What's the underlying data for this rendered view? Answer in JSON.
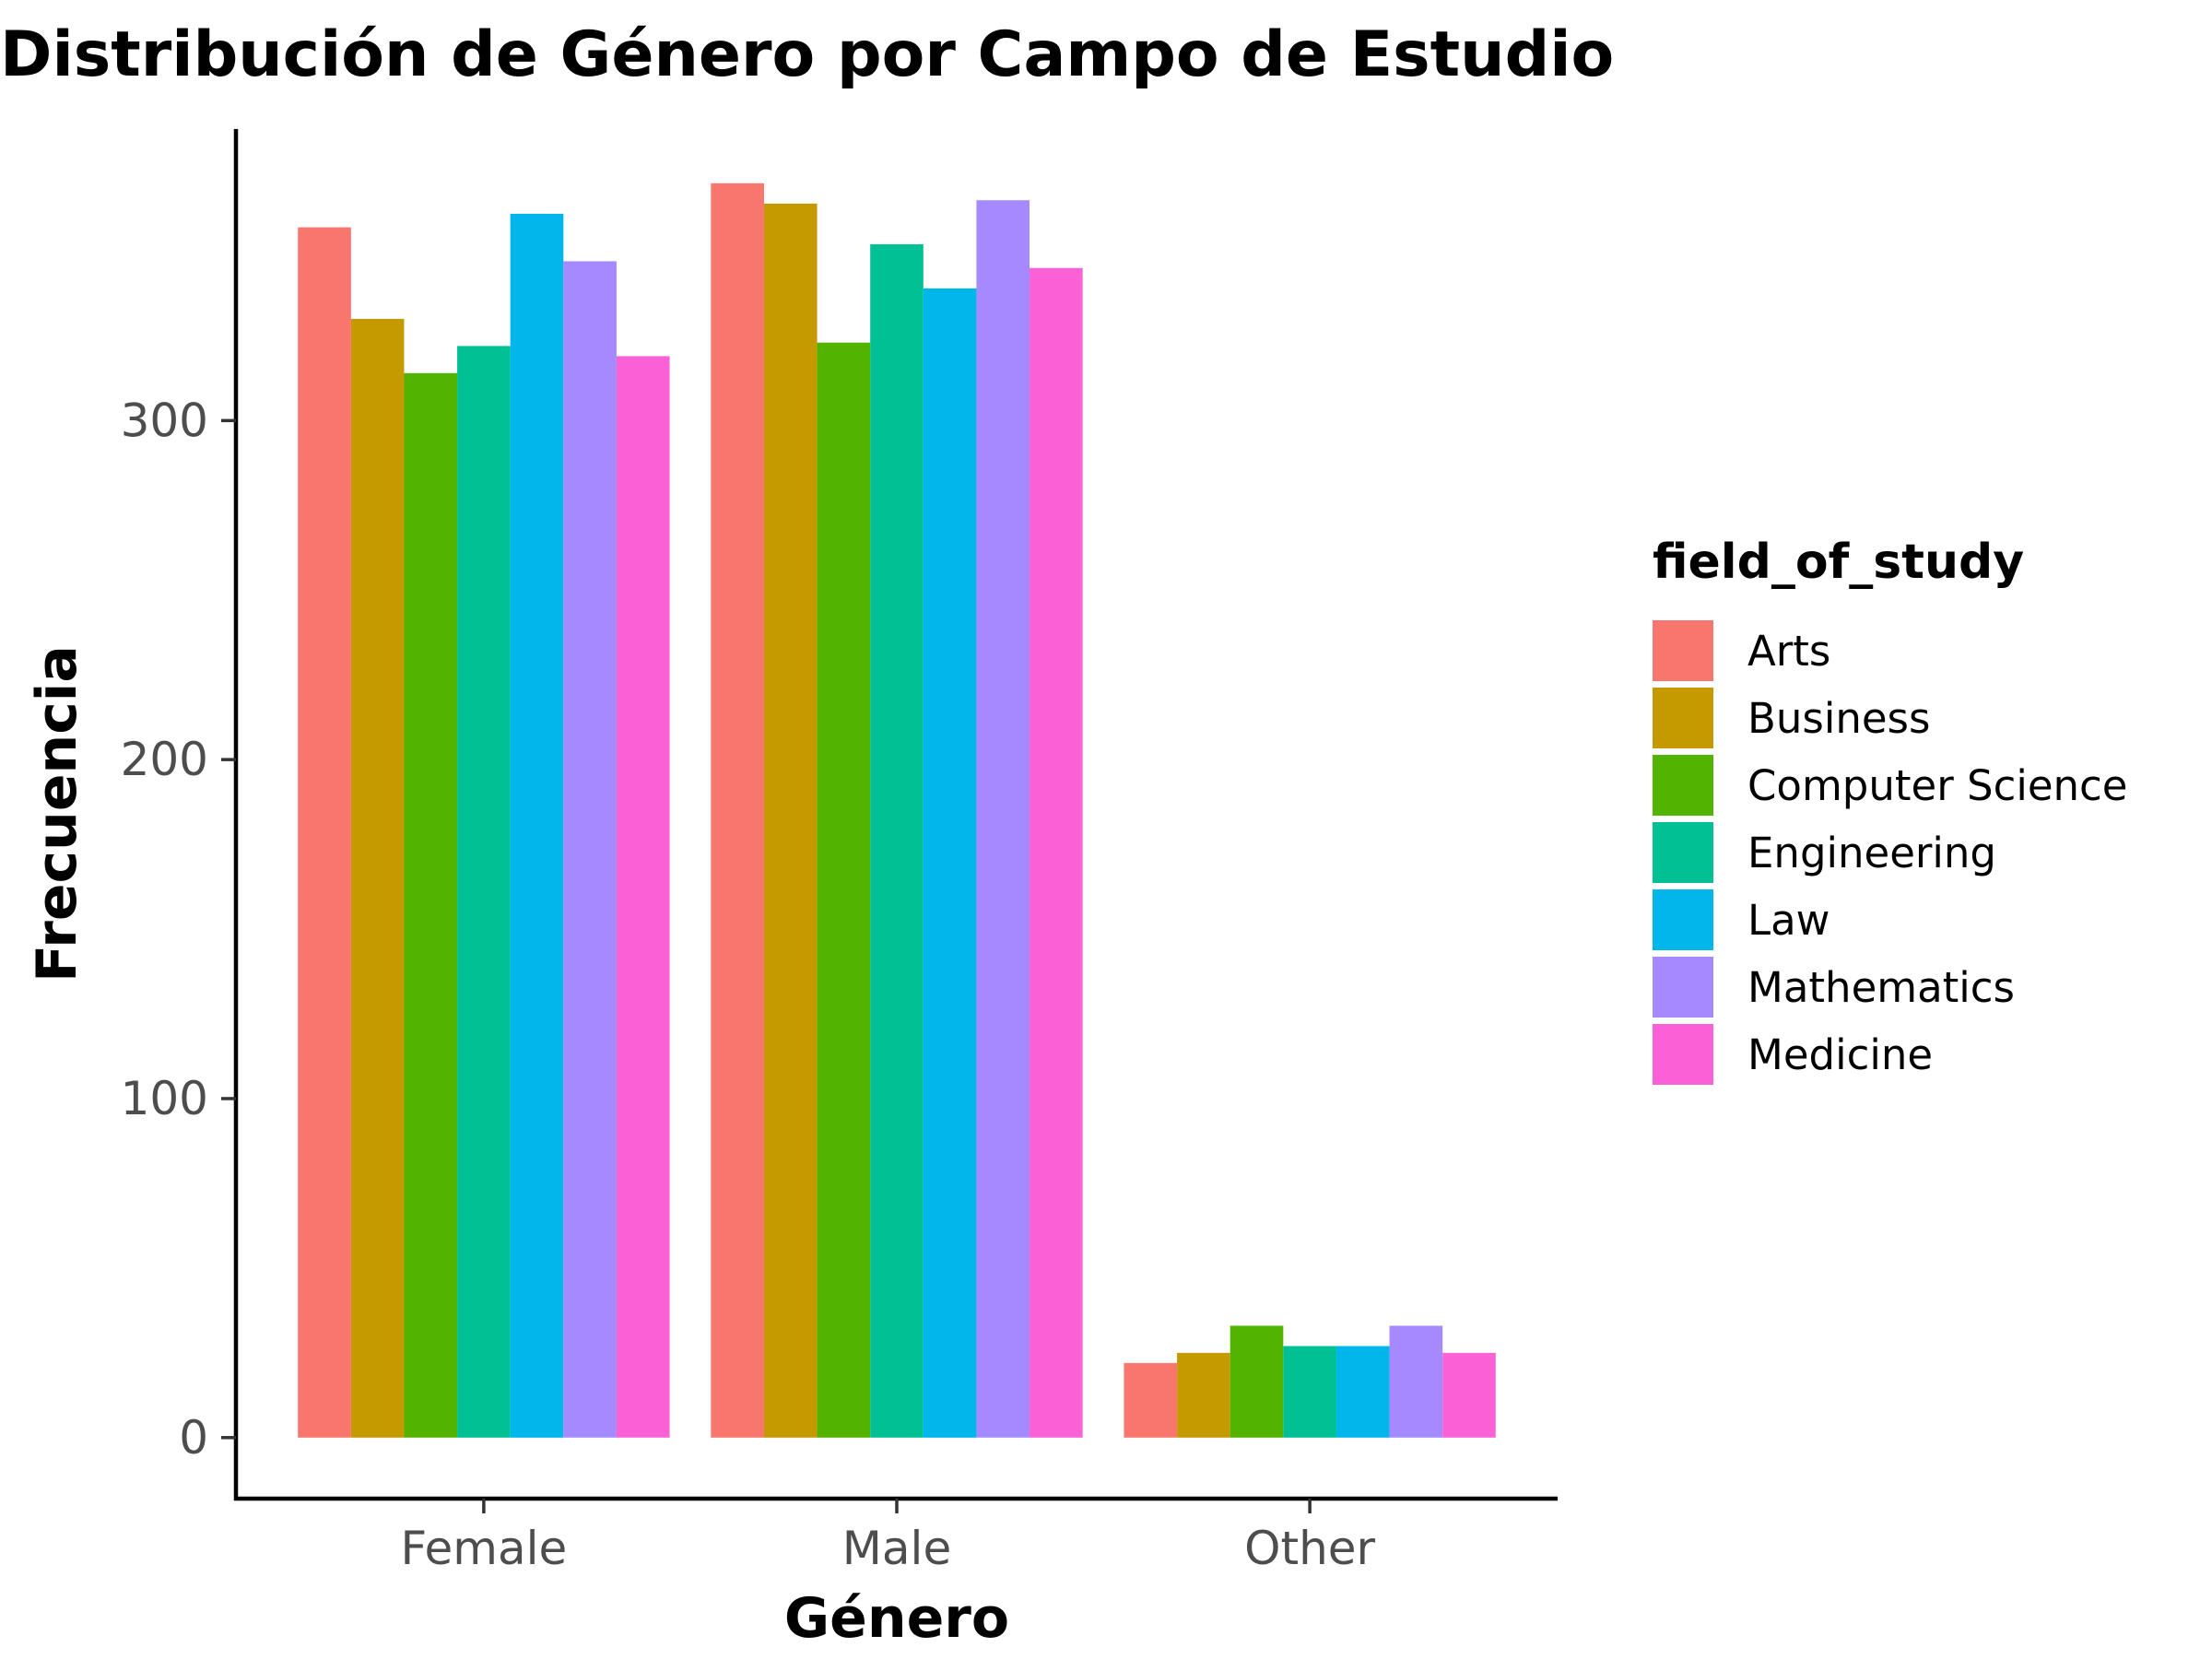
{
  "chart_data": {
    "type": "bar",
    "title": "Distribución de Género por Campo de Estudio",
    "xlabel": "Género",
    "ylabel": "Frecuencia",
    "categories": [
      "Female",
      "Male",
      "Other"
    ],
    "ylim": [
      -18,
      386
    ],
    "yticks": [
      0,
      100,
      200,
      300
    ],
    "grid": false,
    "legend": {
      "title": "field_of_study",
      "position": "right"
    },
    "series": [
      {
        "name": "Arts",
        "color": "#F8766D",
        "values": [
          357,
          370,
          22
        ]
      },
      {
        "name": "Business",
        "color": "#C49A00",
        "values": [
          330,
          364,
          25
        ]
      },
      {
        "name": "Computer Science",
        "color": "#53B400",
        "values": [
          314,
          323,
          33
        ]
      },
      {
        "name": "Engineering",
        "color": "#00C094",
        "values": [
          322,
          352,
          27
        ]
      },
      {
        "name": "Law",
        "color": "#00B6EB",
        "values": [
          361,
          339,
          27
        ]
      },
      {
        "name": "Mathematics",
        "color": "#A58AFF",
        "values": [
          347,
          365,
          33
        ]
      },
      {
        "name": "Medicine",
        "color": "#FB61D7",
        "values": [
          319,
          345,
          25
        ]
      }
    ]
  }
}
